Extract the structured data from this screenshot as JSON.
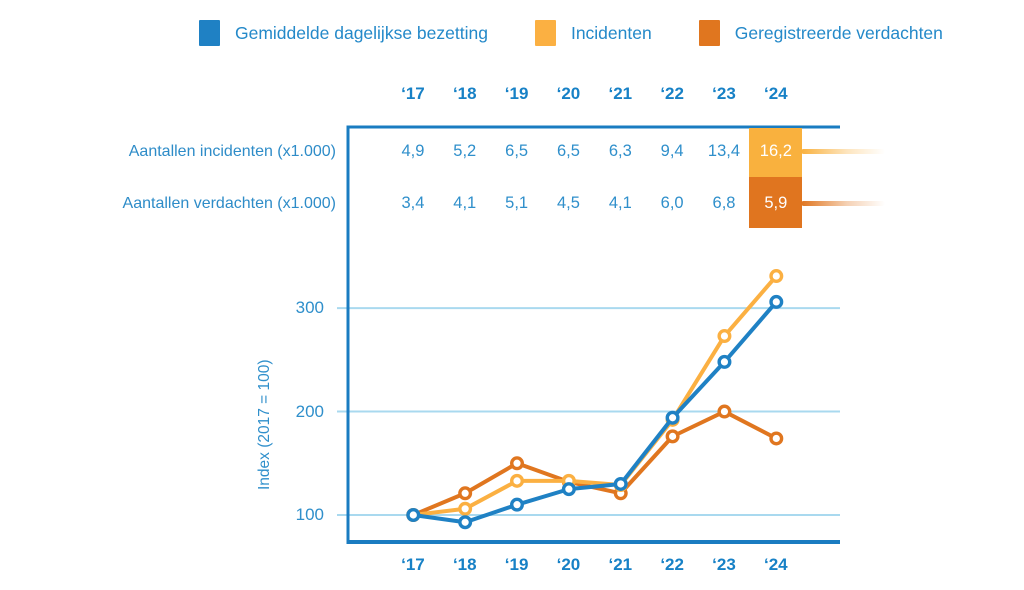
{
  "legend": {
    "items": [
      {
        "label": "Gemiddelde dagelijkse bezetting",
        "color": "#1f81c4"
      },
      {
        "label": "Incidenten",
        "color": "#fbb042"
      },
      {
        "label": "Geregistreerde verdachten",
        "color": "#e0761f"
      }
    ]
  },
  "table": {
    "years": [
      "‘17",
      "‘18",
      "‘19",
      "‘20",
      "‘21",
      "‘22",
      "‘23",
      "‘24"
    ],
    "rows": [
      {
        "label": "Aantallen incidenten (x1.000)",
        "values": [
          "4,9",
          "5,2",
          "6,5",
          "6,5",
          "6,3",
          "9,4",
          "13,4",
          "16,2"
        ],
        "highlight_color": "#f9b13e"
      },
      {
        "label": "Aantallen verdachten (x1.000)",
        "values": [
          "3,4",
          "4,1",
          "5,1",
          "4,5",
          "4,1",
          "6,0",
          "6,8",
          "5,9"
        ],
        "highlight_color": "#e0751f"
      }
    ],
    "highlight_col": 7
  },
  "chart_data": {
    "type": "line",
    "x": [
      "‘17",
      "‘18",
      "‘19",
      "‘20",
      "‘21",
      "‘22",
      "‘23",
      "‘24"
    ],
    "series": [
      {
        "name": "Gemiddelde dagelijkse bezetting",
        "color": "#1f81c4",
        "values": [
          100,
          93,
          110,
          125,
          130,
          194,
          248,
          306
        ]
      },
      {
        "name": "Incidenten",
        "color": "#fbb042",
        "values": [
          100,
          106,
          133,
          133,
          129,
          192,
          273,
          331
        ]
      },
      {
        "name": "Geregistreerde verdachten",
        "color": "#e0761f",
        "values": [
          100,
          121,
          150,
          132,
          121,
          176,
          200,
          174
        ]
      }
    ],
    "ylabel": "Index (2017 = 100)",
    "yticks": [
      100,
      200,
      300
    ],
    "ylim": [
      75,
      345
    ],
    "grid": true,
    "legend_position": "top",
    "marker": "open-circle",
    "grid_color": "#a9d9ef",
    "axis_color": "#1a7cc1"
  }
}
